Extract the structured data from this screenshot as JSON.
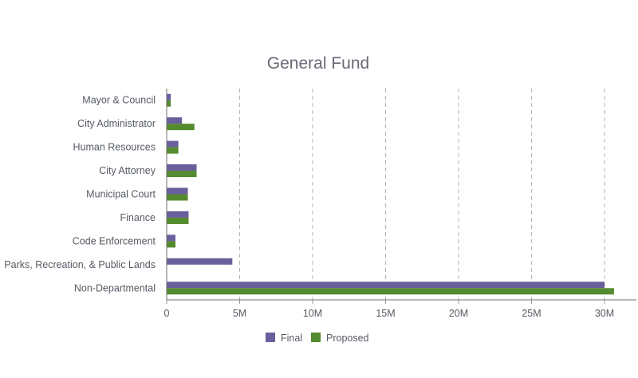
{
  "chart_data": {
    "type": "bar",
    "orientation": "horizontal",
    "title": "General Fund",
    "xlabel": "",
    "ylabel": "",
    "categories": [
      "Mayor & Council",
      "City Administrator",
      "Human Resources",
      "City Attorney",
      "Municipal Court",
      "Finance",
      "Code Enforcement",
      "Parks, Recreation, & Public Lands",
      "Non-Departmental"
    ],
    "series": [
      {
        "name": "Final",
        "color": "#6a5f9c",
        "values": [
          280000,
          1050000,
          800000,
          2050000,
          1450000,
          1500000,
          600000,
          4500000,
          30000000
        ]
      },
      {
        "name": "Proposed",
        "color": "#548b2f",
        "values": [
          280000,
          1900000,
          800000,
          2050000,
          1450000,
          1500000,
          600000,
          0,
          30650000
        ]
      }
    ],
    "xlim": [
      0,
      32000000
    ],
    "xticks": [
      {
        "value": 0,
        "label": "0"
      },
      {
        "value": 5000000,
        "label": "5M"
      },
      {
        "value": 10000000,
        "label": "10M"
      },
      {
        "value": 15000000,
        "label": "15M"
      },
      {
        "value": 20000000,
        "label": "20M"
      },
      {
        "value": 25000000,
        "label": "25M"
      },
      {
        "value": 30000000,
        "label": "30M"
      }
    ],
    "grid": "vertical-dashed",
    "legend_position": "bottom-center"
  }
}
